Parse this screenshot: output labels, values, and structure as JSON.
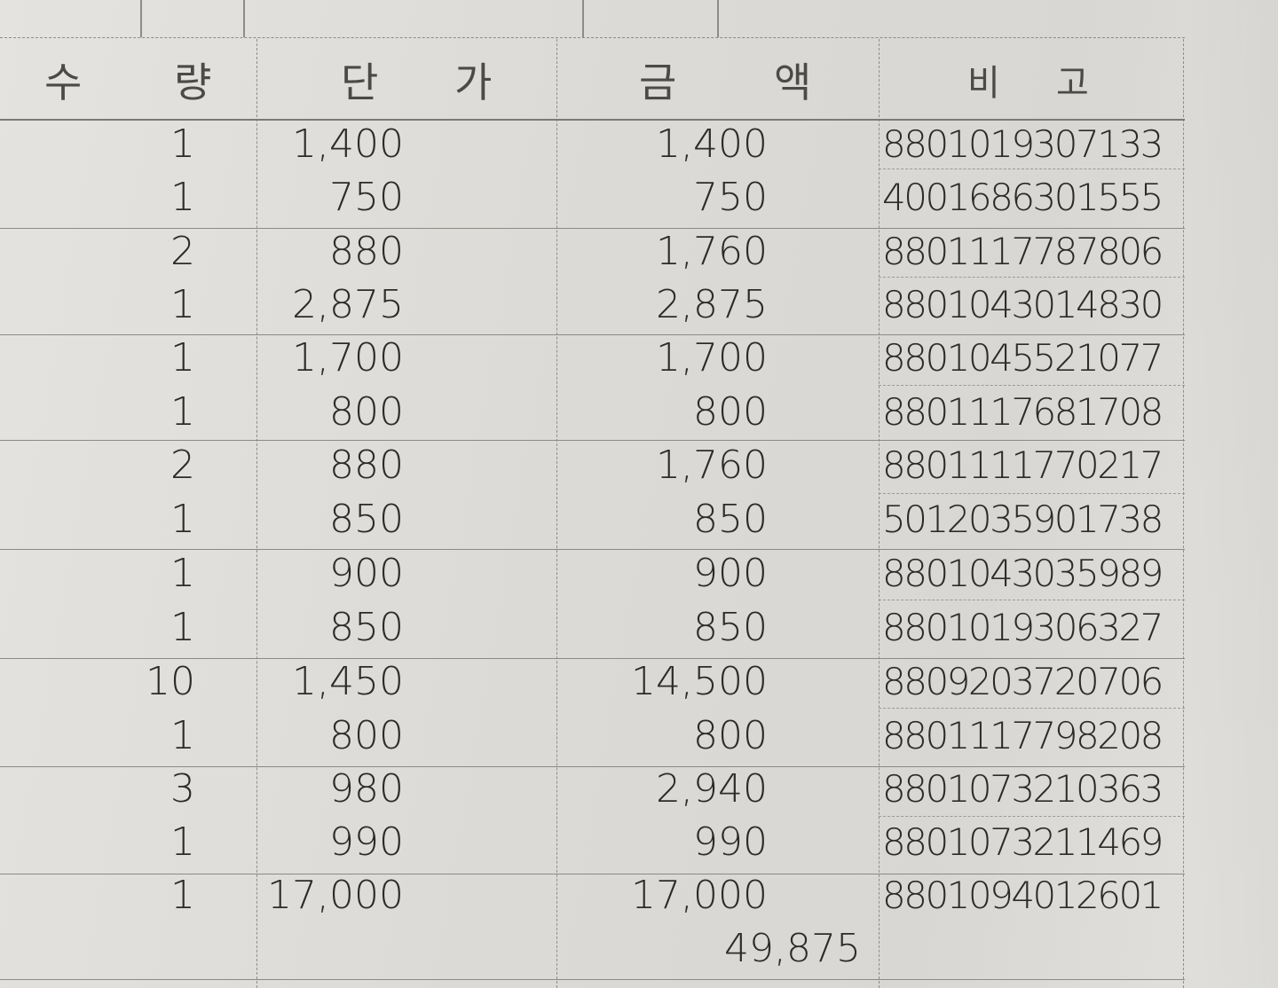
{
  "headers": {
    "qty_left": "수",
    "qty_right": "량",
    "price_left": "단",
    "price_right": "가",
    "amount_left": "금",
    "amount_right": "액",
    "note_left": "비",
    "note_right": "고"
  },
  "rows": [
    {
      "qty": "1",
      "price": "1,400",
      "amount": "1,400",
      "note": "8801019307133"
    },
    {
      "qty": "1",
      "price": "750",
      "amount": "750",
      "note": "4001686301555"
    },
    {
      "qty": "2",
      "price": "880",
      "amount": "1,760",
      "note": "8801117787806"
    },
    {
      "qty": "1",
      "price": "2,875",
      "amount": "2,875",
      "note": "8801043014830"
    },
    {
      "qty": "1",
      "price": "1,700",
      "amount": "1,700",
      "note": "8801045521077"
    },
    {
      "qty": "1",
      "price": "800",
      "amount": "800",
      "note": "8801117681708"
    },
    {
      "qty": "2",
      "price": "880",
      "amount": "1,760",
      "note": "8801111770217"
    },
    {
      "qty": "1",
      "price": "850",
      "amount": "850",
      "note": "5012035901738"
    },
    {
      "qty": "1",
      "price": "900",
      "amount": "900",
      "note": "8801043035989"
    },
    {
      "qty": "1",
      "price": "850",
      "amount": "850",
      "note": "8801019306327"
    },
    {
      "qty": "10",
      "price": "1,450",
      "amount": "14,500",
      "note": "8809203720706"
    },
    {
      "qty": "1",
      "price": "800",
      "amount": "800",
      "note": "8801117798208"
    },
    {
      "qty": "3",
      "price": "980",
      "amount": "2,940",
      "note": "8801073210363"
    },
    {
      "qty": "1",
      "price": "990",
      "amount": "990",
      "note": "8801073211469"
    },
    {
      "qty": "1",
      "price": "17,000",
      "amount": "17,000",
      "note": "8801094012601"
    }
  ],
  "total": "49,875"
}
